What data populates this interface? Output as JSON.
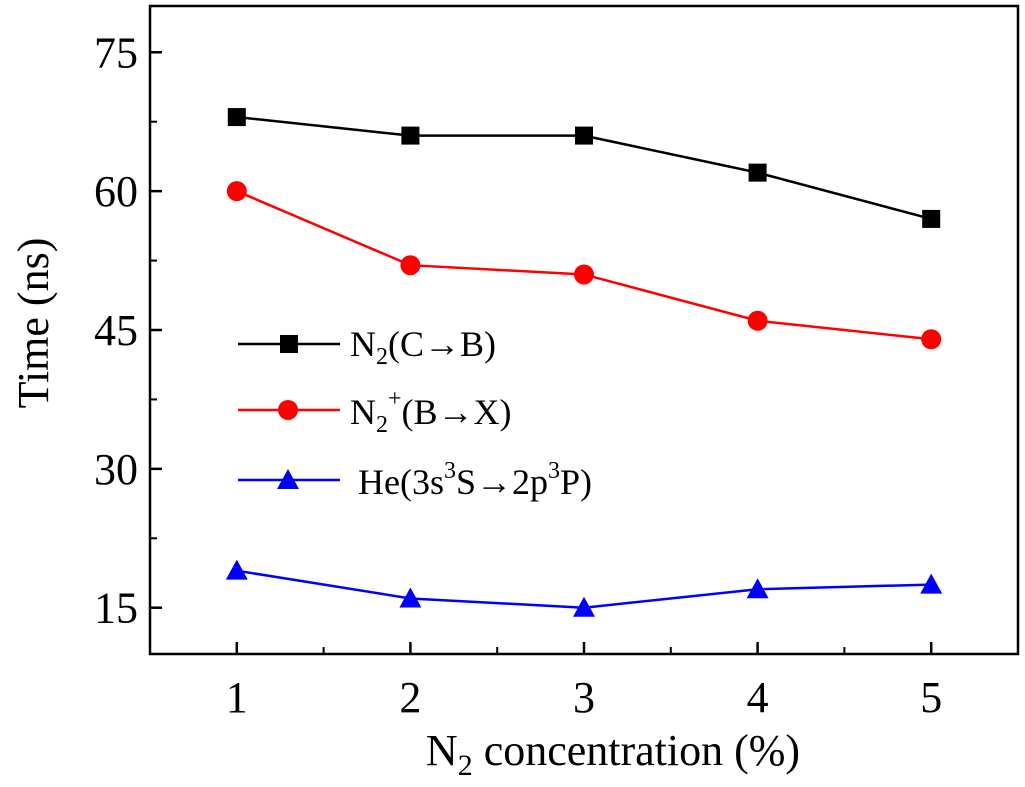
{
  "chart_data": {
    "type": "line",
    "title": "",
    "xlabel_main": "N",
    "xlabel_sub": "2",
    "xlabel_rest": " concentration (%)",
    "ylabel": "Time (ns)",
    "x": [
      1,
      2,
      3,
      4,
      5
    ],
    "x_tick_labels": [
      "1",
      "2",
      "3",
      "4",
      "5"
    ],
    "xlim": [
      0.5,
      5.5
    ],
    "ylim": [
      10,
      80
    ],
    "y_ticks": [
      15,
      30,
      45,
      60,
      75
    ],
    "y_tick_labels": [
      "15",
      "30",
      "45",
      "60",
      "75"
    ],
    "legend_position": "center-left",
    "series": [
      {
        "name": "N2(C→B)",
        "legend_parts": {
          "base": "N",
          "sub": "2",
          "sup": "",
          "rest": "(C→B)"
        },
        "marker": "square",
        "color": "#000000",
        "values": [
          68,
          66,
          66,
          62,
          57
        ]
      },
      {
        "name": "N2+(B→X)",
        "legend_parts": {
          "base": "N",
          "sub": "2",
          "sup": "+",
          "rest": "(B→X)"
        },
        "marker": "circle",
        "color": "#ff0000",
        "values": [
          60,
          52,
          51,
          46,
          44
        ]
      },
      {
        "name": "He(3s3S→2p3P)",
        "legend_parts": {
          "a": "He(3s",
          "sup1": "3",
          "b": "S→2p",
          "sup2": "3",
          "c": "P)"
        },
        "marker": "triangle",
        "color": "#0000ff",
        "values": [
          19,
          16,
          15,
          17,
          17.5
        ]
      }
    ]
  }
}
